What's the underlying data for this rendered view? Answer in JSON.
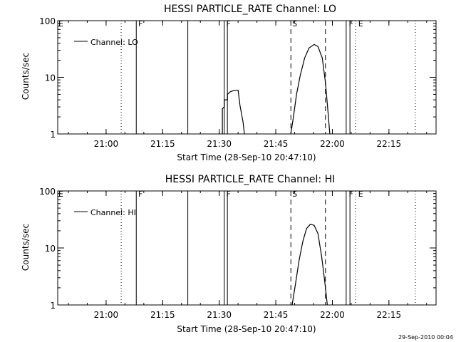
{
  "footer": {
    "stamp": "29-Sep-2010 00:04"
  },
  "colors": {
    "background": "#ffffff",
    "foreground": "#000000"
  },
  "chart_data": [
    {
      "type": "line",
      "title": "HESSI PARTICLE_RATE Channel: LO",
      "xlabel": "Start Time (28-Sep-10 20:47:10)",
      "ylabel": "Counts/sec",
      "y_scale": "log",
      "ylim": [
        1,
        100
      ],
      "xlim": [
        "20:47:10",
        "22:27:30"
      ],
      "x_ticks": [
        "21:00",
        "21:15",
        "21:30",
        "21:45",
        "22:00",
        "22:15"
      ],
      "y_ticks": [
        "1",
        "10",
        "100"
      ],
      "legend": {
        "label": "Channel: LO",
        "placement": "top-left"
      },
      "flags": [
        {
          "label": "E",
          "time": "20:47:10"
        },
        {
          "label": "F",
          "time": "21:08:20"
        },
        {
          "label": "F",
          "time": "21:31:40"
        },
        {
          "label": "S",
          "time": "21:49:10"
        },
        {
          "label": "F",
          "time": "22:04:10"
        },
        {
          "label": "E",
          "time": "22:06:40"
        }
      ],
      "solid_lines": [
        "21:08:00",
        "21:21:40",
        "21:31:20",
        "21:32:10",
        "22:03:40",
        "22:04:40"
      ],
      "dashed_lines": [
        "21:49:00",
        "21:58:10"
      ],
      "dotted_lines": [
        "21:04:00",
        "22:06:10",
        "22:22:00"
      ],
      "series": [
        {
          "points": [
            [
              "21:30:50",
              1
            ],
            [
              "21:30:50",
              2.8
            ],
            [
              "21:31:20",
              3.0
            ],
            [
              "21:31:20",
              4.0
            ],
            [
              "21:32:10",
              4.0
            ],
            [
              "21:32:10",
              5.0
            ],
            [
              "21:33:00",
              5.6
            ],
            [
              "21:34:10",
              5.9
            ],
            [
              "21:35:00",
              5.9
            ],
            [
              "21:35:30",
              3.2
            ],
            [
              "21:36:20",
              1.6
            ],
            [
              "21:36:40",
              1
            ]
          ]
        },
        {
          "points": [
            [
              "21:49:00",
              1
            ],
            [
              "21:49:40",
              2.0
            ],
            [
              "21:50:30",
              5.0
            ],
            [
              "21:51:30",
              11
            ],
            [
              "21:52:40",
              22
            ],
            [
              "21:53:50",
              33
            ],
            [
              "21:55:10",
              38
            ],
            [
              "21:56:10",
              35
            ],
            [
              "21:57:20",
              22
            ],
            [
              "21:58:10",
              8
            ],
            [
              "21:58:50",
              2.5
            ],
            [
              "21:59:20",
              1
            ]
          ]
        }
      ]
    },
    {
      "type": "line",
      "title": "HESSI PARTICLE_RATE Channel: HI",
      "xlabel": "Start Time (28-Sep-10 20:47:10)",
      "ylabel": "Counts/sec",
      "y_scale": "log",
      "ylim": [
        1,
        100
      ],
      "xlim": [
        "20:47:10",
        "22:27:30"
      ],
      "x_ticks": [
        "21:00",
        "21:15",
        "21:30",
        "21:45",
        "22:00",
        "22:15"
      ],
      "y_ticks": [
        "1",
        "10",
        "100"
      ],
      "legend": {
        "label": "Channel: HI",
        "placement": "top-left"
      },
      "flags": [
        {
          "label": "E",
          "time": "20:47:10"
        },
        {
          "label": "F",
          "time": "21:08:20"
        },
        {
          "label": "F",
          "time": "21:31:40"
        },
        {
          "label": "S",
          "time": "21:49:10"
        },
        {
          "label": "F",
          "time": "22:04:10"
        },
        {
          "label": "E",
          "time": "22:06:40"
        }
      ],
      "solid_lines": [
        "21:08:00",
        "21:21:40",
        "21:31:20",
        "21:32:10",
        "22:03:40",
        "22:04:40"
      ],
      "dashed_lines": [
        "21:49:00",
        "21:58:10"
      ],
      "dotted_lines": [
        "21:04:00",
        "22:06:10",
        "22:22:00"
      ],
      "series": [
        {
          "points": [
            [
              "21:49:20",
              1
            ],
            [
              "21:50:10",
              2.2
            ],
            [
              "21:51:10",
              6
            ],
            [
              "21:52:10",
              13
            ],
            [
              "21:53:10",
              22
            ],
            [
              "21:54:10",
              26
            ],
            [
              "21:55:10",
              25
            ],
            [
              "21:56:10",
              18
            ],
            [
              "21:57:10",
              7
            ],
            [
              "21:58:00",
              2.5
            ],
            [
              "21:58:40",
              1
            ]
          ]
        }
      ]
    }
  ]
}
